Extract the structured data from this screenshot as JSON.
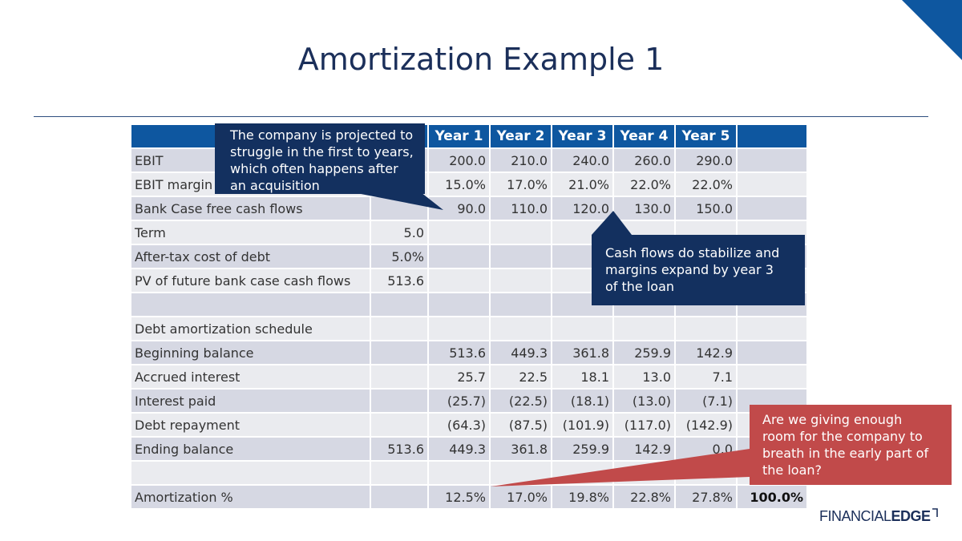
{
  "slide": {
    "title": "Amortization Example 1",
    "accent_color": "#0e57a0",
    "callout_navy": "#13305f",
    "callout_red": "#c14a4a"
  },
  "table": {
    "headers": [
      "",
      "",
      "Year 1",
      "Year 2",
      "Year 3",
      "Year 4",
      "Year 5",
      ""
    ],
    "rows": [
      [
        "EBIT",
        "",
        "200.0",
        "210.0",
        "240.0",
        "260.0",
        "290.0",
        ""
      ],
      [
        "EBIT margin",
        "",
        "15.0%",
        "17.0%",
        "21.0%",
        "22.0%",
        "22.0%",
        ""
      ],
      [
        "Bank Case free cash flows",
        "",
        "90.0",
        "110.0",
        "120.0",
        "130.0",
        "150.0",
        ""
      ],
      [
        "Term",
        "5.0",
        "",
        "",
        "",
        "",
        "",
        ""
      ],
      [
        "After-tax cost of debt",
        "5.0%",
        "",
        "",
        "",
        "",
        "",
        ""
      ],
      [
        "PV of future bank case cash flows",
        "513.6",
        "",
        "",
        "",
        "",
        "",
        ""
      ],
      [
        "",
        "",
        "",
        "",
        "",
        "",
        "",
        ""
      ],
      [
        "Debt amortization schedule",
        "",
        "",
        "",
        "",
        "",
        "",
        ""
      ],
      [
        "Beginning balance",
        "",
        "513.6",
        "449.3",
        "361.8",
        "259.9",
        "142.9",
        ""
      ],
      [
        "Accrued interest",
        "",
        "25.7",
        "22.5",
        "18.1",
        "13.0",
        "7.1",
        ""
      ],
      [
        "Interest paid",
        "",
        "(25.7)",
        "(22.5)",
        "(18.1)",
        "(13.0)",
        "(7.1)",
        ""
      ],
      [
        "Debt repayment",
        "",
        "(64.3)",
        "(87.5)",
        "(101.9)",
        "(117.0)",
        "(142.9)",
        ""
      ],
      [
        "Ending balance",
        "513.6",
        "449.3",
        "361.8",
        "259.9",
        "142.9",
        "0.0",
        ""
      ],
      [
        "",
        "",
        "",
        "",
        "",
        "",
        "",
        ""
      ],
      [
        "Amortization %",
        "",
        "12.5%",
        "17.0%",
        "19.8%",
        "22.8%",
        "27.8%",
        "100.0%"
      ]
    ]
  },
  "callouts": {
    "acquisition": [
      "The company is projected to",
      "struggle in the first to years,",
      "which often happens after",
      "an acquisition"
    ],
    "stabilize": [
      "Cash flows do stabilize and",
      "margins expand by  year 3",
      "of the loan"
    ],
    "breathe": [
      "Are we giving enough",
      "room for the company to",
      "breath in the early part of",
      "the loan?"
    ]
  },
  "logo": {
    "part1": "FINANCIAL",
    "part2": "EDGE"
  }
}
